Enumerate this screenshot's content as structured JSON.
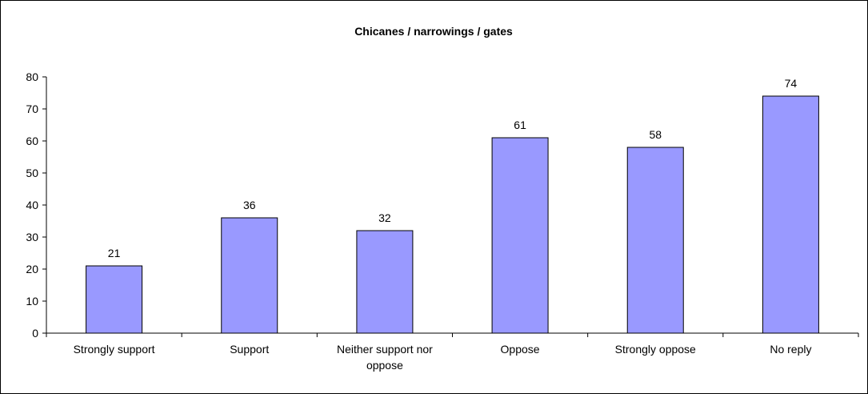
{
  "chart_data": {
    "type": "bar",
    "title": "Chicanes / narrowings / gates",
    "xlabel": "",
    "ylabel": "",
    "categories": [
      [
        "Strongly support"
      ],
      [
        "Support"
      ],
      [
        "Neither support nor",
        "oppose"
      ],
      [
        "Oppose"
      ],
      [
        "Strongly oppose"
      ],
      [
        "No reply"
      ]
    ],
    "values": [
      21,
      36,
      32,
      61,
      58,
      74
    ],
    "ylim": [
      0,
      80
    ],
    "yticks": [
      0,
      10,
      20,
      30,
      40,
      50,
      60,
      70,
      80
    ],
    "grid": false,
    "legend": "none",
    "bar_color": "#9999ff",
    "bar_stroke": "#000000",
    "data_labels": true
  }
}
